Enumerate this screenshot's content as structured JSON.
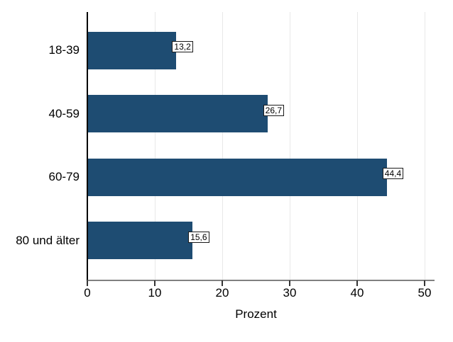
{
  "chart_data": {
    "type": "bar",
    "orientation": "horizontal",
    "title": "",
    "xlabel": "Prozent",
    "ylabel": "",
    "categories": [
      "18-39",
      "40-59",
      "60-79",
      "80 und älter"
    ],
    "values": [
      13.2,
      26.7,
      44.4,
      15.6
    ],
    "value_labels": [
      "13,2",
      "26,7",
      "44,4",
      "15,6"
    ],
    "xticks": [
      0,
      10,
      20,
      30,
      40,
      50
    ],
    "xtick_labels": [
      "0",
      "10",
      "20",
      "30",
      "40",
      "50"
    ],
    "xlim": [
      0,
      51.5
    ],
    "grid": "vertical gridlines at each x tick",
    "legend": "none",
    "colors": {
      "bar": "#1e4c72",
      "gridline": "#e8e8e8",
      "y_axis": "#000000",
      "x_axis": "#808080",
      "tick": "#333333",
      "text": "#000000",
      "value_box_bg": "#ffffff",
      "value_box_border": "#1a1a1a",
      "background": "#ffffff"
    }
  }
}
